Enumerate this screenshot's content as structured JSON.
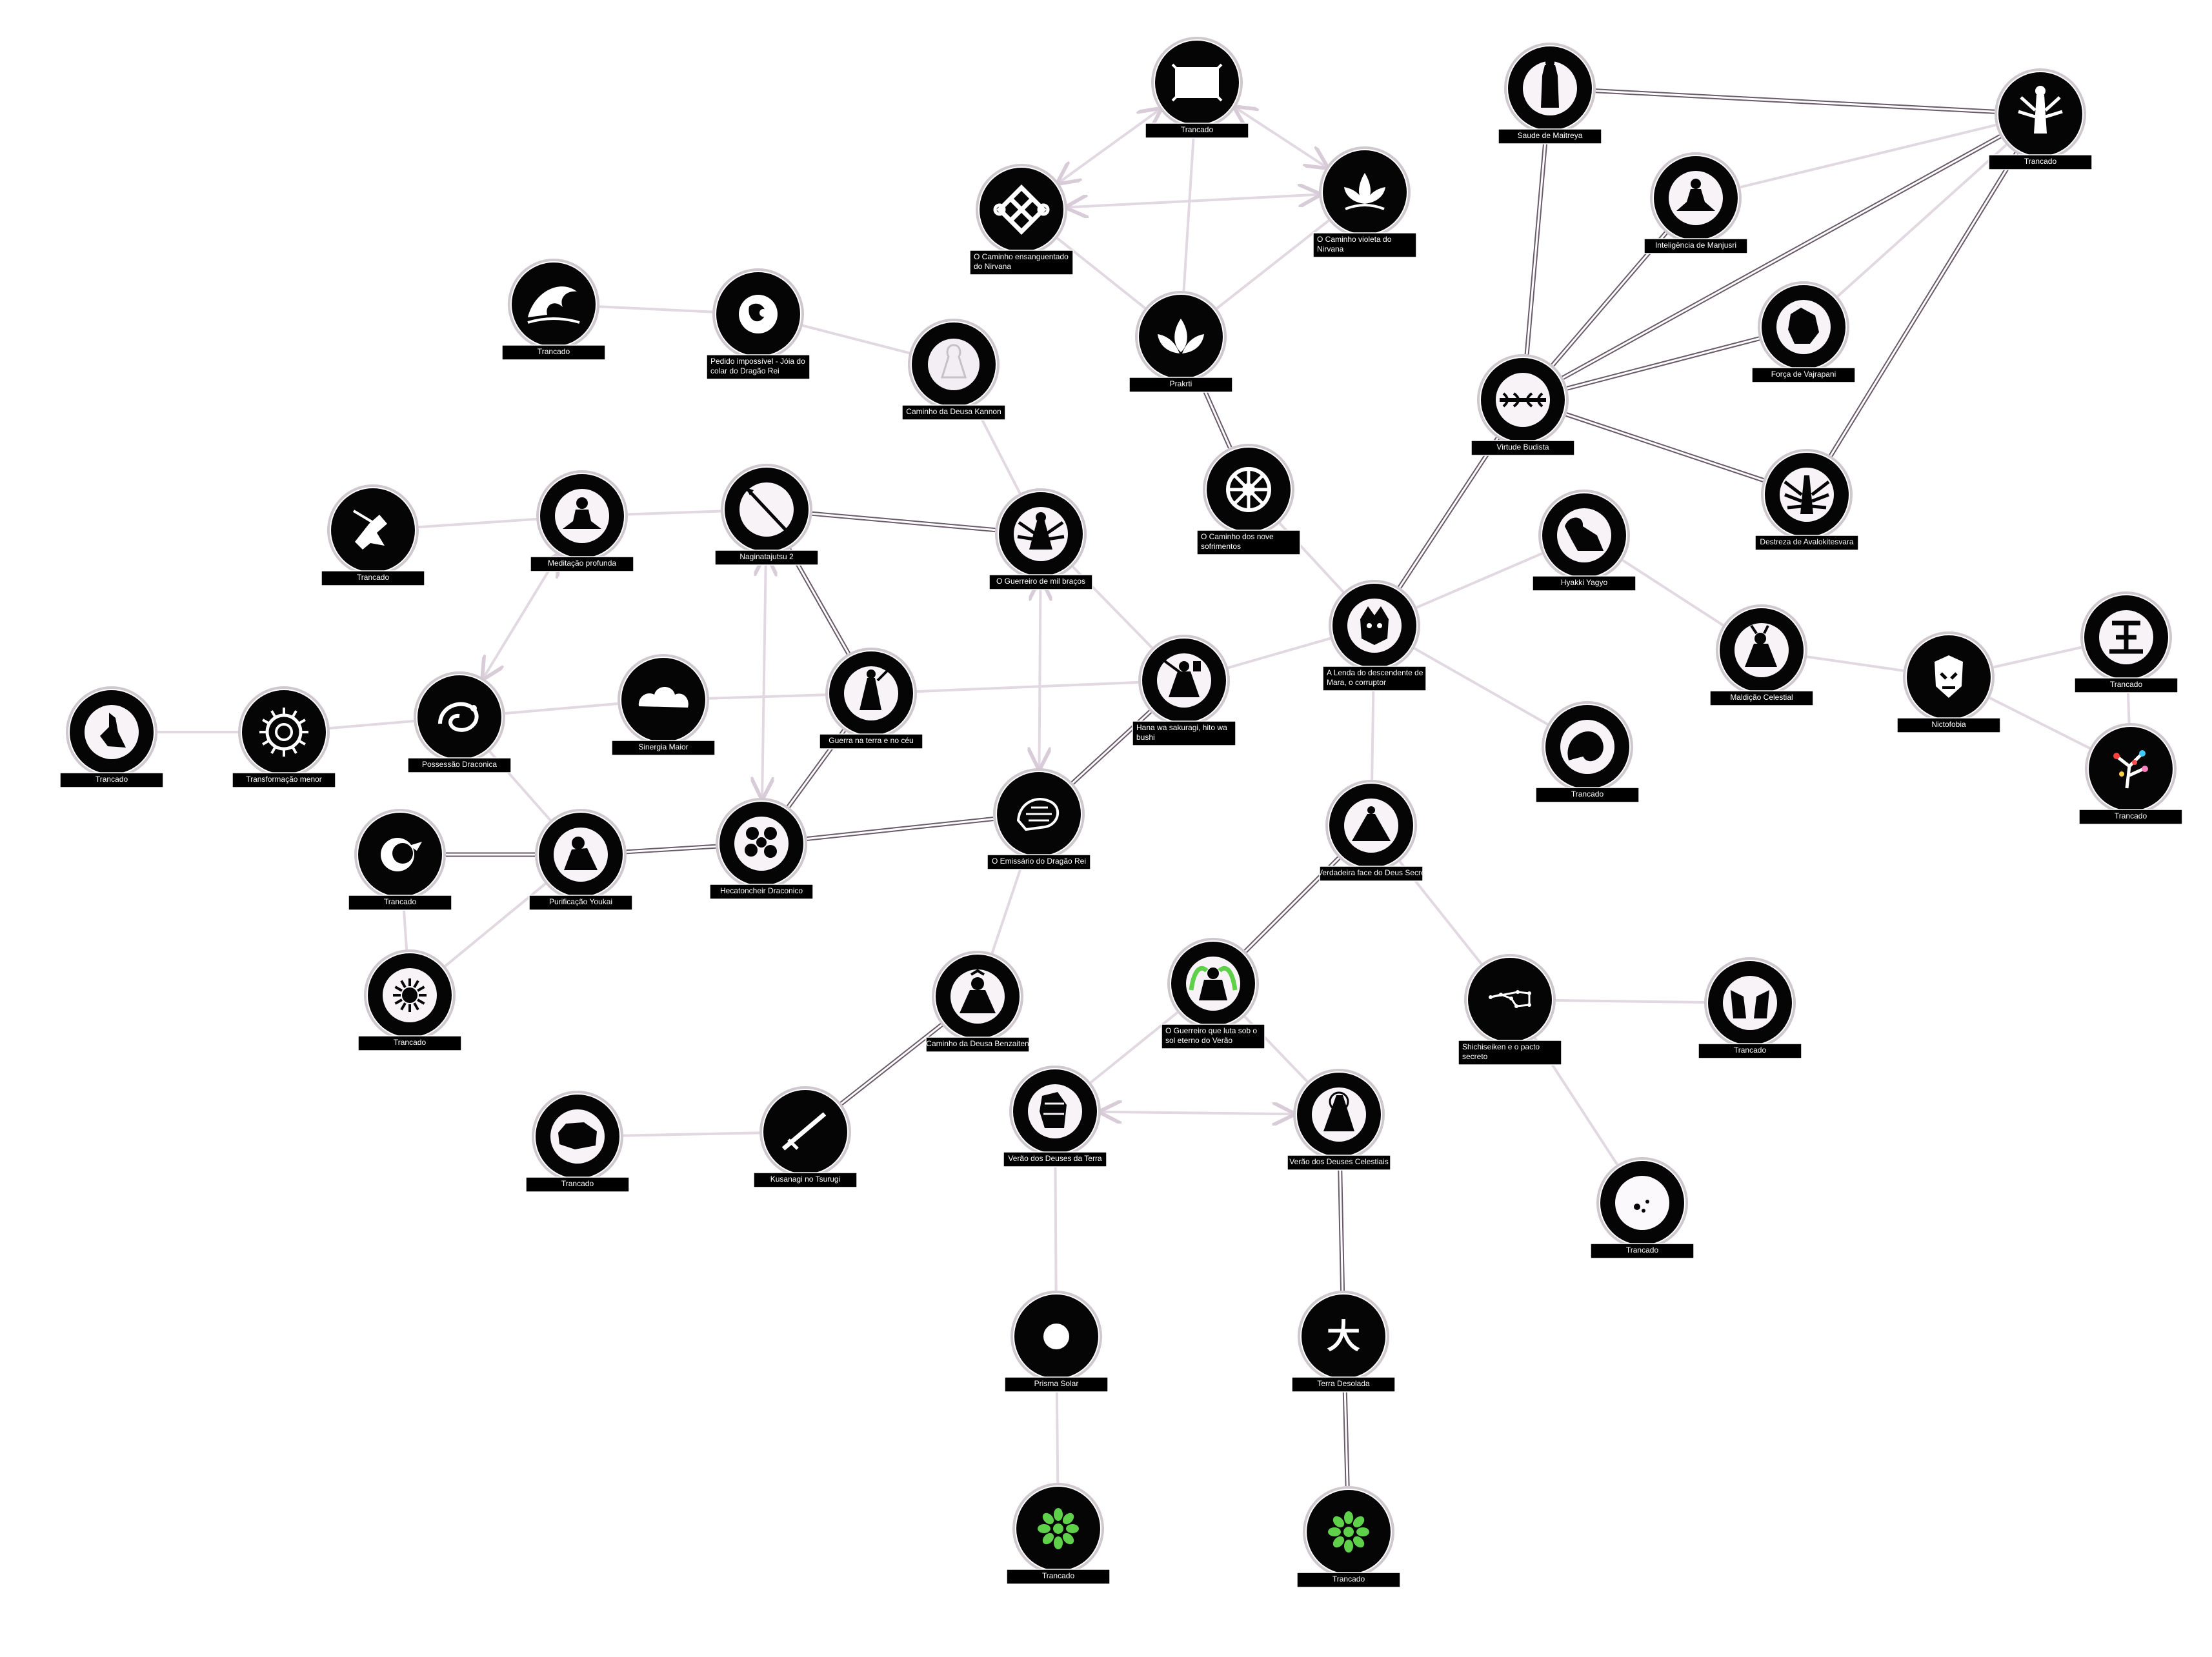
{
  "colors": {
    "node_fill": "#050505",
    "node_ring": "#cfc8cf",
    "label_bg": "#000000",
    "label_text": "#ffffff",
    "edge_dark": "#6a5a6a",
    "edge_light": "#e2d8e2",
    "accent_green": "#5fd04a"
  },
  "nodes": [
    {
      "id": "n1",
      "icon": "scroll-icon",
      "label": [
        "Trancado"
      ]
    },
    {
      "id": "n2",
      "icon": "endless-knot-icon",
      "label": [
        "O Caminho ensanguentado",
        "do Nirvana"
      ]
    },
    {
      "id": "n3",
      "icon": "lotus-flower-icon",
      "label": [
        "O Caminho violeta do",
        "Nirvana"
      ]
    },
    {
      "id": "n4",
      "icon": "lotus-silhouette-icon",
      "label": [
        "Prakrti"
      ]
    },
    {
      "id": "n5",
      "icon": "great-wave-icon",
      "label": [
        "Trancado"
      ]
    },
    {
      "id": "n6",
      "icon": "dragon-jewel-icon",
      "label": [
        "Pedido impossível - Jóia do",
        "colar do Dragão Rei"
      ]
    },
    {
      "id": "n7",
      "icon": "goddess-kannon-icon",
      "label": [
        "Caminho da Deusa Kannon"
      ]
    },
    {
      "id": "n8",
      "icon": "dharma-wheel-icon",
      "label": [
        "O Caminho dos nove",
        "sofrimentos"
      ]
    },
    {
      "id": "n9",
      "icon": "maitreya-icon",
      "label": [
        "Saude de Maitreya"
      ]
    },
    {
      "id": "n10",
      "icon": "multi-armed-deity-icon",
      "label": [
        "Trancado"
      ]
    },
    {
      "id": "n11",
      "icon": "manjusri-icon",
      "label": [
        "Inteligência de Manjusri"
      ]
    },
    {
      "id": "n12",
      "icon": "vajrapani-icon",
      "label": [
        "Força de Vajrapani"
      ]
    },
    {
      "id": "n13",
      "icon": "vajra-icon",
      "label": [
        "Virtude Budista"
      ]
    },
    {
      "id": "n14",
      "icon": "avalokitesvara-icon",
      "label": [
        "Destreza de Avalokitesvara"
      ]
    },
    {
      "id": "n15",
      "icon": "samurai-running-icon",
      "label": [
        "Trancado"
      ]
    },
    {
      "id": "n16",
      "icon": "meditating-monk-icon",
      "label": [
        "Meditação profunda"
      ]
    },
    {
      "id": "n17",
      "icon": "naginata-icon",
      "label": [
        "Naginatajutsu 2"
      ]
    },
    {
      "id": "n18",
      "icon": "thousand-arms-warrior-icon",
      "label": [
        "O Guerreiro de mil braços"
      ]
    },
    {
      "id": "n19",
      "icon": "mara-demon-mask-icon",
      "label": [
        "A Lenda do descendente de",
        "Mara, o corruptor"
      ]
    },
    {
      "id": "n20",
      "icon": "hyakki-yagyo-icon",
      "label": [
        "Hyakki Yagyo"
      ]
    },
    {
      "id": "n21",
      "icon": "cursed-figure-icon",
      "label": [
        "Maldição Celestial"
      ]
    },
    {
      "id": "n22",
      "icon": "nightmare-face-icon",
      "label": [
        "Nictofobia"
      ]
    },
    {
      "id": "n23",
      "icon": "king-kanji-icon",
      "label": [
        "Trancado"
      ]
    },
    {
      "id": "n24",
      "icon": "blossom-branch-icon",
      "label": [
        "Trancado"
      ]
    },
    {
      "id": "n25",
      "icon": "dancer-icon",
      "label": [
        "Trancado"
      ]
    },
    {
      "id": "n26",
      "icon": "spiral-wheel-icon",
      "label": [
        "Transformação menor"
      ]
    },
    {
      "id": "n27",
      "icon": "dragon-coil-icon",
      "label": [
        "Possessão Draconica"
      ]
    },
    {
      "id": "n28",
      "icon": "cloud-icon",
      "label": [
        "Sinergia Maior"
      ]
    },
    {
      "id": "n29",
      "icon": "warrior-heaven-icon",
      "label": [
        "Guerra na terra e no céu"
      ]
    },
    {
      "id": "n30",
      "icon": "bushi-samurai-icon",
      "label": [
        "Hana wa sakuragi, hito wa",
        "bushi"
      ]
    },
    {
      "id": "n31",
      "icon": "serpent-dragon-icon",
      "label": [
        "Trancado"
      ]
    },
    {
      "id": "n32",
      "icon": "moon-bird-icon",
      "label": [
        "Trancado"
      ]
    },
    {
      "id": "n33",
      "icon": "kneeling-monk-icon",
      "label": [
        "Purificação Youkai"
      ]
    },
    {
      "id": "n34",
      "icon": "hecatoncheir-icon",
      "label": [
        "Hecatoncheir Draconico"
      ]
    },
    {
      "id": "n35",
      "icon": "dragon-king-icon",
      "label": [
        "O Emissário do Dragão Rei"
      ]
    },
    {
      "id": "n36",
      "icon": "secret-god-icon",
      "label": [
        "A Verdadeira face do Deus Secreto"
      ]
    },
    {
      "id": "n37",
      "icon": "sun-star-icon",
      "label": [
        "Trancado"
      ]
    },
    {
      "id": "n38",
      "icon": "benzaiten-icon",
      "label": [
        "Caminho da Deusa Benzaiten"
      ]
    },
    {
      "id": "n39",
      "icon": "summer-warrior-icon",
      "label": [
        "O Guerreiro que luta sob o",
        "sol eterno do Verão"
      ]
    },
    {
      "id": "n40",
      "icon": "big-dipper-icon",
      "label": [
        "Shichiseiken e o pacto",
        "secreto"
      ]
    },
    {
      "id": "n41",
      "icon": "twin-figures-icon",
      "label": [
        "Trancado"
      ]
    },
    {
      "id": "n42",
      "icon": "stone-icon",
      "label": [
        "Trancado"
      ]
    },
    {
      "id": "n43",
      "icon": "sword-icon",
      "label": [
        "Kusanagi no Tsurugi"
      ]
    },
    {
      "id": "n44",
      "icon": "earth-gods-icon",
      "label": [
        "Verão dos Deuses da Terra"
      ]
    },
    {
      "id": "n45",
      "icon": "celestial-gods-icon",
      "label": [
        "Verão dos Deuses Celestiais"
      ]
    },
    {
      "id": "n46",
      "icon": "faint-moon-icon",
      "label": [
        "Trancado"
      ]
    },
    {
      "id": "n47",
      "icon": "solar-prism-icon",
      "label": [
        "Prisma Solar"
      ]
    },
    {
      "id": "n48",
      "icon": "dai-kanji-icon",
      "label": [
        "Terra Desolada"
      ]
    },
    {
      "id": "n49",
      "icon": "green-flower-icon",
      "label": [
        "Trancado"
      ]
    },
    {
      "id": "n50",
      "icon": "green-flower-icon",
      "label": [
        "Trancado"
      ]
    }
  ],
  "edges": [
    [
      "n1",
      "n2",
      "light-arrow"
    ],
    [
      "n1",
      "n3",
      "light-arrow"
    ],
    [
      "n2",
      "n3",
      "light-arrow"
    ],
    [
      "n1",
      "n4",
      "light"
    ],
    [
      "n2",
      "n4",
      "light"
    ],
    [
      "n3",
      "n4",
      "light"
    ],
    [
      "n4",
      "n8",
      "dark"
    ],
    [
      "n8",
      "n19",
      "light"
    ],
    [
      "n5",
      "n6",
      "light"
    ],
    [
      "n6",
      "n7",
      "light"
    ],
    [
      "n7",
      "n18",
      "light"
    ],
    [
      "n13",
      "n9",
      "dark"
    ],
    [
      "n13",
      "n10",
      "dark"
    ],
    [
      "n13",
      "n11",
      "dark"
    ],
    [
      "n13",
      "n12",
      "dark"
    ],
    [
      "n13",
      "n14",
      "dark"
    ],
    [
      "n9",
      "n10",
      "dark"
    ],
    [
      "n11",
      "n10",
      "light"
    ],
    [
      "n12",
      "n10",
      "light"
    ],
    [
      "n14",
      "n10",
      "dark"
    ],
    [
      "n13",
      "n19",
      "dark"
    ],
    [
      "n15",
      "n16",
      "light"
    ],
    [
      "n16",
      "n17",
      "light"
    ],
    [
      "n17",
      "n18",
      "dark"
    ],
    [
      "n17",
      "n29",
      "dark"
    ],
    [
      "n18",
      "n30",
      "light"
    ],
    [
      "n30",
      "n19",
      "light"
    ],
    [
      "n19",
      "n20",
      "light"
    ],
    [
      "n20",
      "n21",
      "light"
    ],
    [
      "n21",
      "n22",
      "light"
    ],
    [
      "n22",
      "n23",
      "light"
    ],
    [
      "n22",
      "n24",
      "light"
    ],
    [
      "n23",
      "n24",
      "light"
    ],
    [
      "n19",
      "n31",
      "light"
    ],
    [
      "n19",
      "n36",
      "light"
    ],
    [
      "n25",
      "n26",
      "light"
    ],
    [
      "n26",
      "n27",
      "light"
    ],
    [
      "n27",
      "n28",
      "light"
    ],
    [
      "n28",
      "n29",
      "light"
    ],
    [
      "n29",
      "n30",
      "light"
    ],
    [
      "n16",
      "n27",
      "light-arrow"
    ],
    [
      "n17",
      "n34",
      "light-arrow"
    ],
    [
      "n18",
      "n35",
      "light-arrow"
    ],
    [
      "n27",
      "n33",
      "light"
    ],
    [
      "n32",
      "n33",
      "dark"
    ],
    [
      "n32",
      "n37",
      "light"
    ],
    [
      "n33",
      "n37",
      "light"
    ],
    [
      "n33",
      "n34",
      "dark"
    ],
    [
      "n29",
      "n34",
      "dark"
    ],
    [
      "n34",
      "n35",
      "dark"
    ],
    [
      "n35",
      "n30",
      "dark"
    ],
    [
      "n35",
      "n38",
      "light"
    ],
    [
      "n38",
      "n43",
      "dark"
    ],
    [
      "n42",
      "n43",
      "light"
    ],
    [
      "n36",
      "n39",
      "dark"
    ],
    [
      "n36",
      "n40",
      "light"
    ],
    [
      "n40",
      "n41",
      "light"
    ],
    [
      "n40",
      "n46",
      "light"
    ],
    [
      "n39",
      "n44",
      "light"
    ],
    [
      "n39",
      "n45",
      "light"
    ],
    [
      "n44",
      "n45",
      "light-arrow"
    ],
    [
      "n44",
      "n47",
      "light"
    ],
    [
      "n47",
      "n49",
      "light"
    ],
    [
      "n45",
      "n48",
      "dark"
    ],
    [
      "n48",
      "n50",
      "dark"
    ]
  ]
}
